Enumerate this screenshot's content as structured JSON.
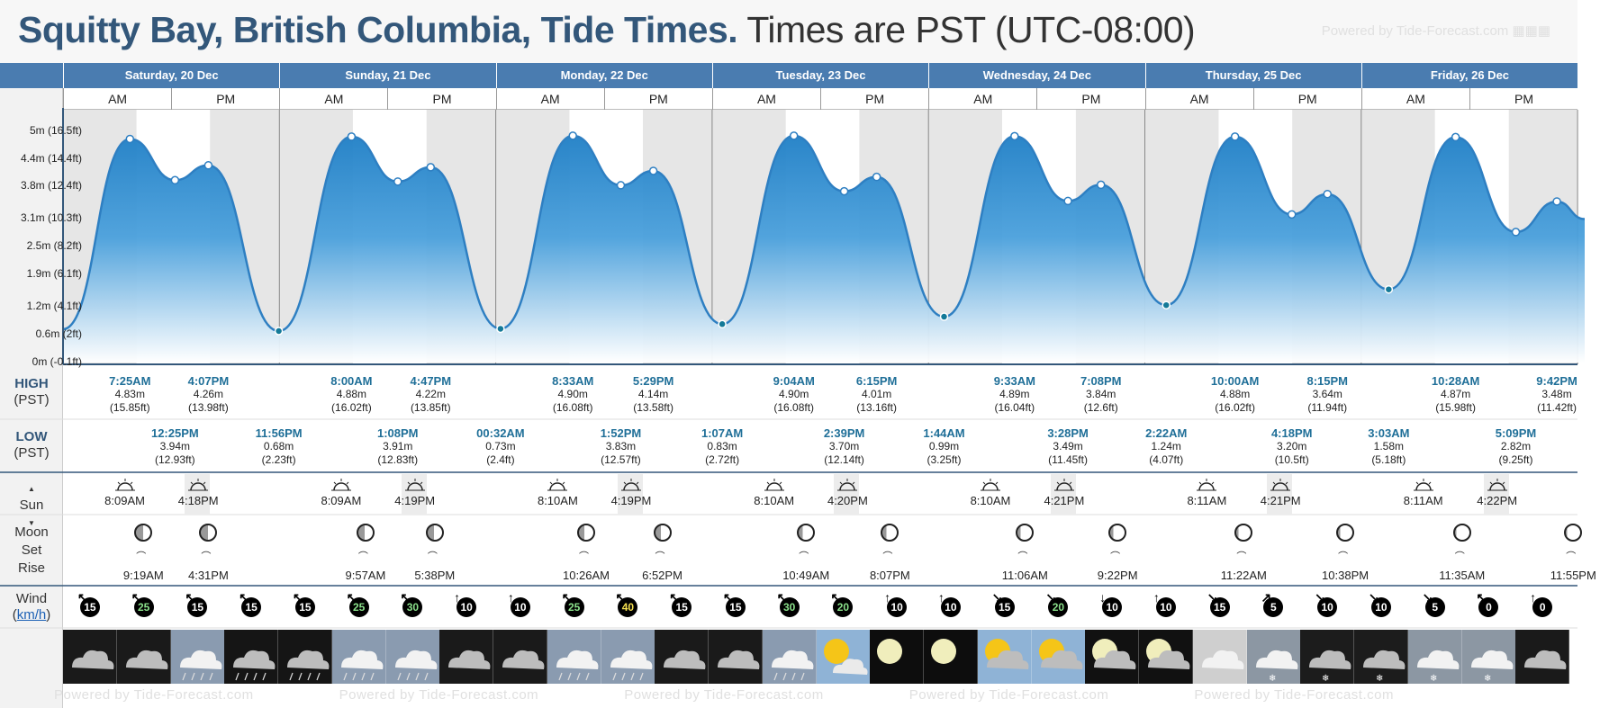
{
  "header": {
    "location": "Squitty Bay, British Columbia, Tide Times.",
    "timezone": "Times are PST (UTC-08:00)",
    "powered": "Powered by Tide-Forecast.com"
  },
  "labels": {
    "high_title": "HIGH",
    "high_sub": "(PST)",
    "low_title": "LOW",
    "low_sub": "(PST)",
    "sun": "Sun",
    "moon": "Moon",
    "moon_set": "Set",
    "moon_rise": "Rise",
    "wind": "Wind",
    "wind_unit": "km/h",
    "am": "AM",
    "pm": "PM"
  },
  "days": [
    {
      "label": "Saturday, 20 Dec"
    },
    {
      "label": "Sunday, 21 Dec"
    },
    {
      "label": "Monday, 22 Dec"
    },
    {
      "label": "Tuesday, 23 Dec"
    },
    {
      "label": "Wednesday, 24 Dec"
    },
    {
      "label": "Thursday, 25 Dec"
    },
    {
      "label": "Friday, 26 Dec"
    }
  ],
  "yaxis": [
    "0m (-0.1ft)",
    "0.6m (2ft)",
    "1.2m (4.1ft)",
    "1.9m (6.1ft)",
    "2.5m (8.2ft)",
    "3.1m (10.3ft)",
    "3.8m (12.4ft)",
    "4.4m (14.4ft)",
    "5m (16.5ft)"
  ],
  "chart_data": {
    "type": "area",
    "title": "Squitty Bay, British Columbia, Tide Times.",
    "ylabel": "",
    "ylim": [
      0,
      5.5
    ],
    "units": "m",
    "points": [
      {
        "day": 0,
        "time": "00:00",
        "h": 0.72
      },
      {
        "day": 0,
        "time": "07:25",
        "h": 4.83
      },
      {
        "day": 0,
        "time": "12:25",
        "h": 3.94
      },
      {
        "day": 0,
        "time": "16:07",
        "h": 4.26
      },
      {
        "day": 0,
        "time": "23:56",
        "h": 0.68
      },
      {
        "day": 1,
        "time": "08:00",
        "h": 4.88
      },
      {
        "day": 1,
        "time": "13:08",
        "h": 3.91
      },
      {
        "day": 1,
        "time": "16:47",
        "h": 4.22
      },
      {
        "day": 2,
        "time": "00:32",
        "h": 0.73
      },
      {
        "day": 2,
        "time": "08:33",
        "h": 4.9
      },
      {
        "day": 2,
        "time": "13:52",
        "h": 3.83
      },
      {
        "day": 2,
        "time": "17:29",
        "h": 4.14
      },
      {
        "day": 3,
        "time": "01:07",
        "h": 0.83
      },
      {
        "day": 3,
        "time": "09:04",
        "h": 4.9
      },
      {
        "day": 3,
        "time": "14:39",
        "h": 3.7
      },
      {
        "day": 3,
        "time": "18:15",
        "h": 4.01
      },
      {
        "day": 4,
        "time": "01:44",
        "h": 0.99
      },
      {
        "day": 4,
        "time": "09:33",
        "h": 4.89
      },
      {
        "day": 4,
        "time": "15:28",
        "h": 3.49
      },
      {
        "day": 4,
        "time": "19:08",
        "h": 3.84
      },
      {
        "day": 5,
        "time": "02:22",
        "h": 1.24
      },
      {
        "day": 5,
        "time": "10:00",
        "h": 4.88
      },
      {
        "day": 5,
        "time": "16:18",
        "h": 3.2
      },
      {
        "day": 5,
        "time": "20:15",
        "h": 3.64
      },
      {
        "day": 6,
        "time": "03:03",
        "h": 1.58
      },
      {
        "day": 6,
        "time": "10:28",
        "h": 4.87
      },
      {
        "day": 6,
        "time": "17:09",
        "h": 2.82
      },
      {
        "day": 6,
        "time": "21:42",
        "h": 3.48
      }
    ]
  },
  "highs": [
    {
      "day": 0,
      "time": "7:25AM",
      "m": "4.83m",
      "ft": "(15.85ft)",
      "hours": 7.42
    },
    {
      "day": 0,
      "time": "4:07PM",
      "m": "4.26m",
      "ft": "(13.98ft)",
      "hours": 16.12
    },
    {
      "day": 1,
      "time": "8:00AM",
      "m": "4.88m",
      "ft": "(16.02ft)",
      "hours": 8.0
    },
    {
      "day": 1,
      "time": "4:47PM",
      "m": "4.22m",
      "ft": "(13.85ft)",
      "hours": 16.78
    },
    {
      "day": 2,
      "time": "8:33AM",
      "m": "4.90m",
      "ft": "(16.08ft)",
      "hours": 8.55
    },
    {
      "day": 2,
      "time": "5:29PM",
      "m": "4.14m",
      "ft": "(13.58ft)",
      "hours": 17.48
    },
    {
      "day": 3,
      "time": "9:04AM",
      "m": "4.90m",
      "ft": "(16.08ft)",
      "hours": 9.07
    },
    {
      "day": 3,
      "time": "6:15PM",
      "m": "4.01m",
      "ft": "(13.16ft)",
      "hours": 18.25
    },
    {
      "day": 4,
      "time": "9:33AM",
      "m": "4.89m",
      "ft": "(16.04ft)",
      "hours": 9.55
    },
    {
      "day": 4,
      "time": "7:08PM",
      "m": "3.84m",
      "ft": "(12.6ft)",
      "hours": 19.13
    },
    {
      "day": 5,
      "time": "10:00AM",
      "m": "4.88m",
      "ft": "(16.02ft)",
      "hours": 10.0
    },
    {
      "day": 5,
      "time": "8:15PM",
      "m": "3.64m",
      "ft": "(11.94ft)",
      "hours": 20.25
    },
    {
      "day": 6,
      "time": "10:28AM",
      "m": "4.87m",
      "ft": "(15.98ft)",
      "hours": 10.47
    },
    {
      "day": 6,
      "time": "9:42PM",
      "m": "3.48m",
      "ft": "(11.42ft)",
      "hours": 21.7
    }
  ],
  "lows": [
    {
      "day": 0,
      "time": "12:25PM",
      "m": "3.94m",
      "ft": "(12.93ft)",
      "hours": 12.42
    },
    {
      "day": 0,
      "time": "11:56PM",
      "m": "0.68m",
      "ft": "(2.23ft)",
      "hours": 23.93
    },
    {
      "day": 1,
      "time": "1:08PM",
      "m": "3.91m",
      "ft": "(12.83ft)",
      "hours": 13.13
    },
    {
      "day": 2,
      "time": "00:32AM",
      "m": "0.73m",
      "ft": "(2.4ft)",
      "hours": 0.53
    },
    {
      "day": 2,
      "time": "1:52PM",
      "m": "3.83m",
      "ft": "(12.57ft)",
      "hours": 13.87
    },
    {
      "day": 3,
      "time": "1:07AM",
      "m": "0.83m",
      "ft": "(2.72ft)",
      "hours": 1.12
    },
    {
      "day": 3,
      "time": "2:39PM",
      "m": "3.70m",
      "ft": "(12.14ft)",
      "hours": 14.65
    },
    {
      "day": 4,
      "time": "1:44AM",
      "m": "0.99m",
      "ft": "(3.25ft)",
      "hours": 1.73
    },
    {
      "day": 4,
      "time": "3:28PM",
      "m": "3.49m",
      "ft": "(11.45ft)",
      "hours": 15.47
    },
    {
      "day": 5,
      "time": "2:22AM",
      "m": "1.24m",
      "ft": "(4.07ft)",
      "hours": 2.37
    },
    {
      "day": 5,
      "time": "4:18PM",
      "m": "3.20m",
      "ft": "(10.5ft)",
      "hours": 16.3
    },
    {
      "day": 6,
      "time": "3:03AM",
      "m": "1.58m",
      "ft": "(5.18ft)",
      "hours": 3.05
    },
    {
      "day": 6,
      "time": "5:09PM",
      "m": "2.82m",
      "ft": "(9.25ft)",
      "hours": 17.15
    }
  ],
  "sun": [
    {
      "rise": "8:09AM",
      "set": "4:18PM",
      "rise_h": 8.15,
      "set_h": 16.3
    },
    {
      "rise": "8:09AM",
      "set": "4:19PM",
      "rise_h": 8.15,
      "set_h": 16.32
    },
    {
      "rise": "8:10AM",
      "set": "4:19PM",
      "rise_h": 8.17,
      "set_h": 16.32
    },
    {
      "rise": "8:10AM",
      "set": "4:20PM",
      "rise_h": 8.17,
      "set_h": 16.33
    },
    {
      "rise": "8:10AM",
      "set": "4:21PM",
      "rise_h": 8.17,
      "set_h": 16.35
    },
    {
      "rise": "8:11AM",
      "set": "4:21PM",
      "rise_h": 8.18,
      "set_h": 16.35
    },
    {
      "rise": "8:11AM",
      "set": "4:22PM",
      "rise_h": 8.18,
      "set_h": 16.37
    }
  ],
  "moon": [
    {
      "set": "9:19AM",
      "rise": "4:31PM",
      "set_h": 9.32,
      "rise_h": 16.52
    },
    {
      "set": "9:57AM",
      "rise": "5:38PM",
      "set_h": 9.95,
      "rise_h": 17.63
    },
    {
      "set": "10:26AM",
      "rise": "6:52PM",
      "set_h": 10.43,
      "rise_h": 18.87
    },
    {
      "set": "10:49AM",
      "rise": "8:07PM",
      "set_h": 10.82,
      "rise_h": 20.12
    },
    {
      "set": "11:06AM",
      "rise": "9:22PM",
      "set_h": 11.1,
      "rise_h": 21.37
    },
    {
      "set": "11:22AM",
      "rise": "10:38PM",
      "set_h": 11.37,
      "rise_h": 22.63
    },
    {
      "set": "11:35AM",
      "rise": "11:55PM",
      "set_h": 11.58,
      "rise_h": 23.92
    }
  ],
  "wind": [
    {
      "speed": "15",
      "dir": "↖",
      "color": "#ffffff"
    },
    {
      "speed": "25",
      "dir": "↖",
      "color": "#8ae08a"
    },
    {
      "speed": "15",
      "dir": "↖",
      "color": "#ffffff"
    },
    {
      "speed": "15",
      "dir": "↖",
      "color": "#ffffff"
    },
    {
      "speed": "15",
      "dir": "↖",
      "color": "#ffffff"
    },
    {
      "speed": "25",
      "dir": "↖",
      "color": "#8ae08a"
    },
    {
      "speed": "30",
      "dir": "↖",
      "color": "#8ae08a"
    },
    {
      "speed": "10",
      "dir": "↑",
      "color": "#ffffff"
    },
    {
      "speed": "10",
      "dir": "↑",
      "color": "#ffffff"
    },
    {
      "speed": "25",
      "dir": "↖",
      "color": "#8ae08a"
    },
    {
      "speed": "40",
      "dir": "↖",
      "color": "#f5e050"
    },
    {
      "speed": "15",
      "dir": "↖",
      "color": "#ffffff"
    },
    {
      "speed": "15",
      "dir": "↖",
      "color": "#ffffff"
    },
    {
      "speed": "30",
      "dir": "↖",
      "color": "#8ae08a"
    },
    {
      "speed": "20",
      "dir": "↖",
      "color": "#8ae08a"
    },
    {
      "speed": "10",
      "dir": "↑",
      "color": "#ffffff"
    },
    {
      "speed": "10",
      "dir": "↑",
      "color": "#ffffff"
    },
    {
      "speed": "15",
      "dir": "↘",
      "color": "#ffffff"
    },
    {
      "speed": "20",
      "dir": "↘",
      "color": "#8ae08a"
    },
    {
      "speed": "10",
      "dir": "↓",
      "color": "#ffffff"
    },
    {
      "speed": "10",
      "dir": "↑",
      "color": "#ffffff"
    },
    {
      "speed": "15",
      "dir": "↘",
      "color": "#ffffff"
    },
    {
      "speed": "5",
      "dir": "↗",
      "color": "#ffffff"
    },
    {
      "speed": "10",
      "dir": "↘",
      "color": "#ffffff"
    },
    {
      "speed": "10",
      "dir": "↘",
      "color": "#ffffff"
    },
    {
      "speed": "5",
      "dir": "↘",
      "color": "#ffffff"
    },
    {
      "speed": "0",
      "dir": "↖",
      "color": "#ffffff"
    },
    {
      "speed": "0",
      "dir": "↑",
      "color": "#ffffff"
    }
  ],
  "weather": [
    "cloud-night",
    "cloud-night",
    "rain-day",
    "rain-night",
    "rain-night",
    "rain-day",
    "rain-day",
    "cloud-night",
    "cloud-night",
    "rain-day",
    "rain-day",
    "cloud-night",
    "cloud-night",
    "rain-day",
    "sun-day",
    "moon-clear",
    "moon-clear",
    "sun-cloud-day",
    "sun-cloud-day",
    "moon-cloud",
    "moon-cloud",
    "cloud-day",
    "snow-day",
    "snow-night",
    "snow-night",
    "snow-day",
    "snow-day",
    "cloud-night"
  ],
  "colors": {
    "header_bg": "#4a7cb0",
    "title": "#33577a",
    "tide_fill": "#2f8fd0",
    "tide_line": "#2e7fc2",
    "marker": "#147a98",
    "night_band": "#e6e6e6"
  }
}
